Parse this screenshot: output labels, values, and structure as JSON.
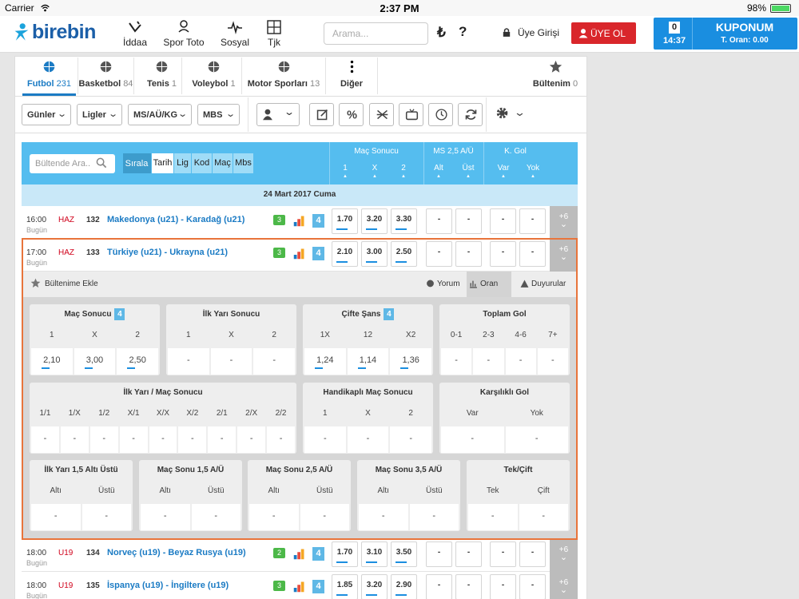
{
  "status_bar": {
    "carrier": "Carrier",
    "time": "2:37 PM",
    "battery": "98%"
  },
  "header": {
    "logo": "birebin",
    "nav": [
      "İddaa",
      "Spor Toto",
      "Sosyal",
      "Tjk"
    ],
    "search_placeholder": "Arama...",
    "currency": "₺",
    "help": "?",
    "login": "Üye Girişi",
    "register": "ÜYE OL",
    "coupon": {
      "count": "0",
      "time": "14:37",
      "title": "KUPONUM",
      "ratio": "T. Oran: 0.00"
    }
  },
  "sport_tabs": [
    {
      "name": "Futbol",
      "count": "231"
    },
    {
      "name": "Basketbol",
      "count": "84"
    },
    {
      "name": "Tenis",
      "count": "1"
    },
    {
      "name": "Voleybol",
      "count": "1"
    },
    {
      "name": "Motor Sporları",
      "count": "13"
    },
    {
      "name": "Diğer"
    },
    {
      "name": "Bültenim",
      "count": "0"
    }
  ],
  "filters": [
    "Günler",
    "Ligler",
    "MS/AÜ/KG",
    "MBS"
  ],
  "table_header": {
    "search_placeholder": "Bültende Ara..",
    "sort_label": "Sırala",
    "sort_options": [
      "Tarih",
      "Lig",
      "Kod",
      "Maç",
      "Mbs"
    ],
    "groups": [
      {
        "title": "Maç Sonucu",
        "cols": [
          "1",
          "X",
          "2"
        ]
      },
      {
        "title": "MS 2,5 A/Ü",
        "cols": [
          "Alt",
          "Üst"
        ]
      },
      {
        "title": "K. Gol",
        "cols": [
          "Var",
          "Yok"
        ]
      }
    ]
  },
  "date": "24 Mart 2017 Cuma",
  "matches": [
    {
      "time": "16:00",
      "day": "Bugün",
      "league": "HAZ",
      "code": "132",
      "name": "Makedonya (u21) - Karadağ (u21)",
      "comments": "3",
      "mbs": "4",
      "odds": [
        "1.70",
        "3.20",
        "3.30"
      ],
      "ou": [
        "-",
        "-"
      ],
      "kg": [
        "-",
        "-"
      ],
      "more": "+6"
    },
    {
      "time": "17:00",
      "day": "Bugün",
      "league": "HAZ",
      "code": "133",
      "name": "Türkiye (u21) - Ukrayna (u21)",
      "comments": "3",
      "mbs": "4",
      "odds": [
        "2.10",
        "3.00",
        "2.50"
      ],
      "ou": [
        "-",
        "-"
      ],
      "kg": [
        "-",
        "-"
      ],
      "more": "+6"
    },
    {
      "time": "18:00",
      "day": "Bugün",
      "league": "U19",
      "code": "134",
      "name": "Norveç (u19) - Beyaz Rusya (u19)",
      "comments": "2",
      "mbs": "4",
      "odds": [
        "1.70",
        "3.10",
        "3.50"
      ],
      "ou": [
        "-",
        "-"
      ],
      "kg": [
        "-",
        "-"
      ],
      "more": "+6"
    },
    {
      "time": "18:00",
      "day": "Bugün",
      "league": "U19",
      "code": "135",
      "name": "İspanya (u19) - İngiltere (u19)",
      "comments": "3",
      "mbs": "4",
      "odds": [
        "1.85",
        "3.20",
        "2.90"
      ],
      "ou": [
        "-",
        "-"
      ],
      "kg": [
        "-",
        "-"
      ],
      "more": "+6"
    }
  ],
  "detail": {
    "add": "Bültenime Ekle",
    "tabs": [
      "Yorum",
      "Oran",
      "Duyurular"
    ],
    "markets": [
      [
        {
          "title": "Maç Sonucu",
          "badge": "4",
          "cols": [
            "1",
            "X",
            "2"
          ],
          "values": [
            "2,10",
            "3,00",
            "2,50"
          ]
        },
        {
          "title": "İlk Yarı Sonucu",
          "cols": [
            "1",
            "X",
            "2"
          ],
          "values": [
            "-",
            "-",
            "-"
          ]
        },
        {
          "title": "Çifte Şans",
          "badge": "4",
          "cols": [
            "1X",
            "12",
            "X2"
          ],
          "values": [
            "1,24",
            "1,14",
            "1,36"
          ]
        },
        {
          "title": "Toplam Gol",
          "cols": [
            "0-1",
            "2-3",
            "4-6",
            "7+"
          ],
          "values": [
            "-",
            "-",
            "-",
            "-"
          ]
        }
      ],
      [
        {
          "title": "İlk Yarı / Maç Sonucu",
          "cols": [
            "1/1",
            "1/X",
            "1/2",
            "X/1",
            "X/X",
            "X/2",
            "2/1",
            "2/X",
            "2/2"
          ],
          "values": [
            "-",
            "-",
            "-",
            "-",
            "-",
            "-",
            "-",
            "-",
            "-"
          ]
        },
        {
          "title": "Handikaplı Maç Sonucu",
          "cols": [
            "1",
            "X",
            "2"
          ],
          "values": [
            "-",
            "-",
            "-"
          ]
        },
        {
          "title": "Karşılıklı Gol",
          "cols": [
            "Var",
            "Yok"
          ],
          "values": [
            "-",
            "-"
          ]
        }
      ],
      [
        {
          "title": "İlk Yarı 1,5 Altı Üstü",
          "cols": [
            "Altı",
            "Üstü"
          ],
          "values": [
            "-",
            "-"
          ]
        },
        {
          "title": "Maç Sonu 1,5 A/Ü",
          "cols": [
            "Altı",
            "Üstü"
          ],
          "values": [
            "-",
            "-"
          ]
        },
        {
          "title": "Maç Sonu 2,5 A/Ü",
          "cols": [
            "Altı",
            "Üstü"
          ],
          "values": [
            "-",
            "-"
          ]
        },
        {
          "title": "Maç Sonu 3,5 A/Ü",
          "cols": [
            "Altı",
            "Üstü"
          ],
          "values": [
            "-",
            "-"
          ]
        },
        {
          "title": "Tek/Çift",
          "cols": [
            "Tek",
            "Çift"
          ],
          "values": [
            "-",
            "-"
          ]
        }
      ]
    ]
  }
}
